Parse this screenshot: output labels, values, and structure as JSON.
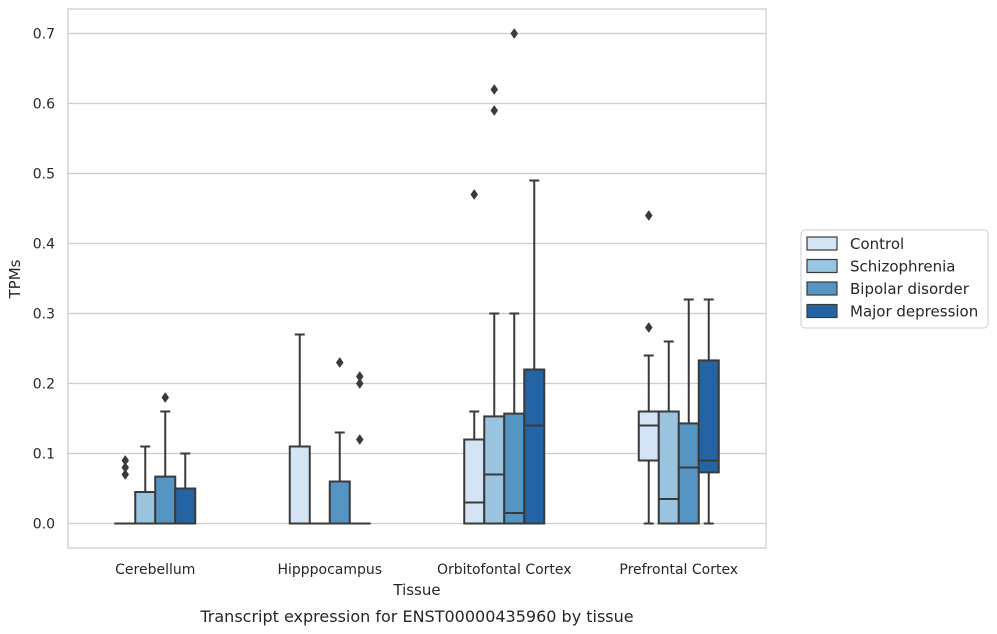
{
  "caption": "Transcript expression for ENST00000435960 by tissue",
  "chart_data": {
    "type": "box",
    "xlabel": "Tissue",
    "ylabel": "TPMs",
    "ylim": [
      -0.035,
      0.735
    ],
    "yticks": [
      0.0,
      0.1,
      0.2,
      0.3,
      0.4,
      0.5,
      0.6,
      0.7
    ],
    "ytick_labels": [
      "0.0",
      "0.1",
      "0.2",
      "0.3",
      "0.4",
      "0.5",
      "0.6",
      "0.7"
    ],
    "grid": "horizontal",
    "legend_position": "right",
    "categories": [
      "Cerebellum",
      "Hipppocampus",
      "Orbitofontal Cortex",
      "Prefrontal Cortex"
    ],
    "series": [
      {
        "name": "Control",
        "color": "#d4e4f4",
        "boxes": [
          {
            "whislo": 0,
            "q1": 0,
            "med": 0,
            "q3": 0,
            "whishi": 0,
            "fliers": [
              0.07,
              0.08,
              0.09
            ]
          },
          {
            "whislo": 0,
            "q1": 0,
            "med": 0,
            "q3": 0.11,
            "whishi": 0.27,
            "fliers": []
          },
          {
            "whislo": 0,
            "q1": 0,
            "med": 0.03,
            "q3": 0.12,
            "whishi": 0.16,
            "fliers": [
              0.47
            ]
          },
          {
            "whislo": 0,
            "q1": 0.09,
            "med": 0.14,
            "q3": 0.16,
            "whishi": 0.24,
            "fliers": [
              0.28,
              0.44
            ]
          }
        ]
      },
      {
        "name": "Schizophrenia",
        "color": "#9ac4df",
        "boxes": [
          {
            "whislo": 0,
            "q1": 0,
            "med": 0,
            "q3": 0.045,
            "whishi": 0.11,
            "fliers": []
          },
          {
            "whislo": 0,
            "q1": 0,
            "med": 0,
            "q3": 0,
            "whishi": 0,
            "fliers": []
          },
          {
            "whislo": 0,
            "q1": 0,
            "med": 0.07,
            "q3": 0.153,
            "whishi": 0.3,
            "fliers": [
              0.59,
              0.62
            ]
          },
          {
            "whislo": 0,
            "q1": 0,
            "med": 0.035,
            "q3": 0.16,
            "whishi": 0.26,
            "fliers": []
          }
        ]
      },
      {
        "name": "Bipolar disorder",
        "color": "#5495c4",
        "boxes": [
          {
            "whislo": 0,
            "q1": 0,
            "med": 0,
            "q3": 0.067,
            "whishi": 0.16,
            "fliers": [
              0.18
            ]
          },
          {
            "whislo": 0,
            "q1": 0,
            "med": 0,
            "q3": 0.06,
            "whishi": 0.13,
            "fliers": [
              0.23
            ]
          },
          {
            "whislo": 0,
            "q1": 0,
            "med": 0.015,
            "q3": 0.157,
            "whishi": 0.3,
            "fliers": [
              0.7
            ]
          },
          {
            "whislo": 0,
            "q1": 0,
            "med": 0.08,
            "q3": 0.143,
            "whishi": 0.32,
            "fliers": []
          }
        ]
      },
      {
        "name": "Major depression",
        "color": "#2464a4",
        "boxes": [
          {
            "whislo": 0,
            "q1": 0,
            "med": 0,
            "q3": 0.05,
            "whishi": 0.1,
            "fliers": []
          },
          {
            "whislo": 0,
            "q1": 0,
            "med": 0,
            "q3": 0,
            "whishi": 0,
            "fliers": [
              0.12,
              0.2,
              0.21
            ]
          },
          {
            "whislo": 0,
            "q1": 0,
            "med": 0.14,
            "q3": 0.22,
            "whishi": 0.49,
            "fliers": []
          },
          {
            "whislo": 0,
            "q1": 0.073,
            "med": 0.09,
            "q3": 0.233,
            "whishi": 0.32,
            "fliers": []
          }
        ]
      }
    ]
  }
}
